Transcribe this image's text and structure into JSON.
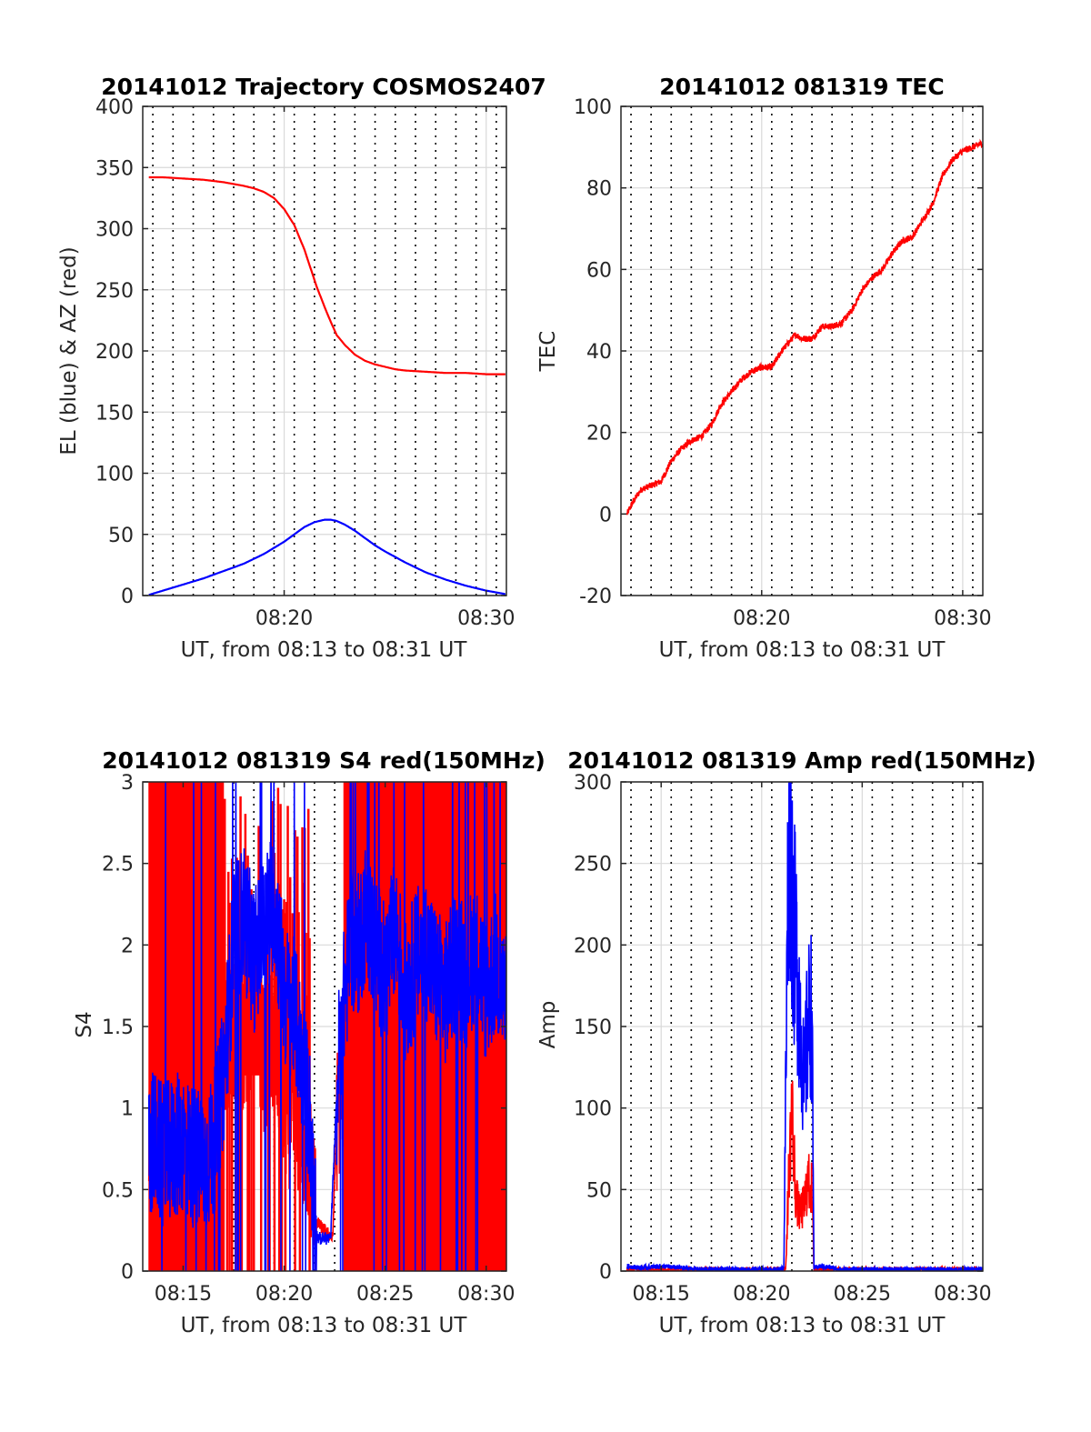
{
  "colors": {
    "azimuth": "#ff0000",
    "elevation": "#0000ff",
    "tec": "#ff0000",
    "s4_red": "#ff0000",
    "s4_blue": "#0000ff",
    "amp_red": "#ff0000",
    "amp_blue": "#0000ff",
    "grid": "#d9d9d9",
    "axes": "#262626"
  },
  "chart_data": [
    {
      "id": "trajectory",
      "type": "line",
      "title": "20141012 Trajectory COSMOS2407",
      "xlabel": "UT, from 08:13 to 08:31 UT",
      "ylabel": "EL (blue) & AZ (red)",
      "xlim_min": [
        13.0,
        31.0
      ],
      "ylim": [
        0,
        400
      ],
      "xticks": [
        20,
        30
      ],
      "xtick_labels": [
        "08:20",
        "08:30"
      ],
      "yticks": [
        0,
        50,
        100,
        150,
        200,
        250,
        300,
        350,
        400
      ],
      "ytick_labels": [
        "0",
        "50",
        "100",
        "150",
        "200",
        "250",
        "300",
        "350",
        "400"
      ],
      "minor_x": [
        13.5,
        14.5,
        15.5,
        16.5,
        17.5,
        18.5,
        19.5,
        20.5,
        21.5,
        22.5,
        23.5,
        24.5,
        25.5,
        26.5,
        27.5,
        28.5,
        29.5,
        30.5
      ],
      "grid": true,
      "series": [
        {
          "color": "#ff0000",
          "x": [
            13.3,
            14,
            15,
            16,
            17,
            18,
            18.5,
            19,
            19.5,
            20,
            20.5,
            21,
            21.3,
            21.6,
            22,
            22.3,
            22.6,
            23,
            23.5,
            24,
            24.5,
            25,
            25.5,
            26,
            27,
            28,
            29,
            30,
            31
          ],
          "y": [
            342,
            342,
            341,
            340,
            338,
            335,
            333,
            330,
            325,
            316,
            303,
            283,
            268,
            253,
            236,
            224,
            213,
            205,
            197,
            192,
            189,
            187,
            185,
            184,
            183,
            182,
            182,
            181,
            181
          ]
        },
        {
          "color": "#0000ff",
          "x": [
            13.3,
            14,
            15,
            16,
            17,
            18,
            19,
            20,
            20.5,
            21,
            21.5,
            22,
            22.3,
            22.6,
            23,
            23.5,
            24,
            24.5,
            25,
            26,
            27,
            28,
            29,
            30,
            31
          ],
          "y": [
            0.5,
            4,
            9,
            14,
            20,
            26,
            34,
            44,
            50,
            56,
            60,
            62,
            62,
            61,
            58,
            53,
            47,
            41,
            36,
            27,
            19,
            13,
            8,
            4,
            1
          ]
        }
      ]
    },
    {
      "id": "tec",
      "type": "line",
      "title": "20141012 081319 TEC",
      "xlabel": "UT, from 08:13 to 08:31 UT",
      "ylabel": "TEC",
      "xlim_min": [
        13.0,
        31.0
      ],
      "ylim": [
        -20,
        100
      ],
      "xticks": [
        20,
        30
      ],
      "xtick_labels": [
        "08:20",
        "08:30"
      ],
      "yticks": [
        -20,
        0,
        20,
        40,
        60,
        80,
        100
      ],
      "ytick_labels": [
        "-20",
        "0",
        "20",
        "40",
        "60",
        "80",
        "100"
      ],
      "minor_x": [
        13.5,
        14.5,
        15.5,
        16.5,
        17.5,
        18.5,
        19.5,
        20.5,
        21.5,
        22.5,
        23.5,
        24.5,
        25.5,
        26.5,
        27.5,
        28.5,
        29.5,
        30.5
      ],
      "grid": true,
      "series": [
        {
          "color": "#ff0000",
          "x": [
            13.3,
            13.6,
            14,
            14.5,
            15,
            15.5,
            16,
            16.5,
            17,
            17.5,
            18,
            18.5,
            19,
            19.5,
            20,
            20.5,
            21,
            21.5,
            21.7,
            22,
            22.5,
            23,
            23.5,
            24,
            24.5,
            25,
            25.5,
            26,
            26.5,
            27,
            27.5,
            28,
            28.5,
            29,
            29.5,
            30,
            30.5,
            31
          ],
          "y": [
            0,
            3,
            6,
            7,
            8,
            13,
            16,
            18,
            19,
            22,
            27,
            30,
            33,
            35,
            36,
            36,
            40,
            43,
            44,
            43,
            43,
            46,
            46,
            47,
            50,
            55,
            58,
            60,
            64,
            67,
            68,
            72,
            76,
            83,
            87,
            89,
            90,
            91
          ]
        }
      ]
    },
    {
      "id": "s4",
      "type": "line",
      "title": "20141012 081319 S4 red(150MHz)",
      "xlabel": "UT, from 08:13 to 08:31 UT",
      "ylabel": "S4",
      "xlim_min": [
        13.0,
        31.0
      ],
      "ylim": [
        0,
        3
      ],
      "xticks": [
        15,
        20,
        25,
        30
      ],
      "xtick_labels": [
        "08:15",
        "08:20",
        "08:25",
        "08:30"
      ],
      "yticks": [
        0,
        0.5,
        1,
        1.5,
        2,
        2.5,
        3
      ],
      "ytick_labels": [
        "0",
        "0.5",
        "1",
        "1.5",
        "2",
        "2.5",
        "3"
      ],
      "minor_x": [
        13.5,
        14.5,
        15.5,
        16.5,
        17.5,
        18.5,
        19.5,
        20.5,
        21.5,
        22.5,
        23.5,
        24.5,
        25.5,
        26.5,
        27.5,
        28.5,
        29.5,
        30.5
      ],
      "grid": true,
      "series": [
        {
          "color": "#ff0000",
          "x": [
            13.3,
            16.9,
            17.0,
            17.5,
            18,
            18.5,
            19,
            19.5,
            20,
            20.5,
            21,
            21.4,
            21.6,
            22,
            22.4,
            22.6,
            22.9,
            23.1,
            23.5,
            24,
            24.5,
            25,
            25.5,
            26,
            26.5,
            27,
            27.5,
            28,
            28.5,
            29,
            29.5,
            30,
            30.5,
            31
          ],
          "y": [
            0.75,
            0.7,
            1.3,
            1.5,
            1.4,
            1.6,
            1.3,
            1.4,
            1.0,
            0.9,
            0.8,
            0.6,
            0.3,
            0.25,
            0.2,
            0.9,
            1.2,
            1.0,
            1.3,
            1.5,
            1.4,
            1.6,
            1.5,
            1.4,
            1.5,
            1.6,
            1.5,
            1.4,
            1.5,
            1.4,
            1.6,
            1.3,
            1.5,
            1.4
          ]
        },
        {
          "color": "#0000ff",
          "x": [
            13.3,
            13.5,
            14,
            14.5,
            15,
            15.5,
            16,
            16.5,
            17,
            17.5,
            18,
            18.5,
            19,
            19.5,
            20,
            20.5,
            21,
            21.3,
            21.5,
            21.7,
            22,
            22.3,
            22.5,
            22.7,
            22.9,
            23.1,
            23.3,
            23.5,
            24,
            24.5,
            25,
            25.5,
            26,
            26.5,
            27,
            27.5,
            28,
            28.5,
            29,
            29.5,
            30,
            30.5,
            31
          ],
          "y": [
            0.75,
            0.8,
            0.7,
            0.75,
            0.8,
            0.7,
            0.65,
            0.75,
            1.2,
            2.0,
            2.2,
            1.9,
            2.1,
            2.3,
            1.7,
            1.6,
            1.2,
            0.9,
            0.25,
            0.2,
            0.2,
            0.2,
            0.8,
            1.3,
            1.6,
            1.8,
            2.1,
            1.9,
            2.2,
            2.0,
            1.8,
            2.1,
            1.7,
            1.9,
            2.0,
            1.8,
            1.7,
            1.9,
            1.8,
            2.0,
            1.7,
            1.9,
            1.6
          ]
        }
      ]
    },
    {
      "id": "amp",
      "type": "line",
      "title": "20141012 081319 Amp red(150MHz)",
      "xlabel": "UT, from 08:13 to 08:31 UT",
      "ylabel": "Amp",
      "xlim_min": [
        13.0,
        31.0
      ],
      "ylim": [
        0,
        300
      ],
      "xticks": [
        15,
        20,
        25,
        30
      ],
      "xtick_labels": [
        "08:15",
        "08:20",
        "08:25",
        "08:30"
      ],
      "yticks": [
        0,
        50,
        100,
        150,
        200,
        250,
        300
      ],
      "ytick_labels": [
        "0",
        "50",
        "100",
        "150",
        "200",
        "250",
        "300"
      ],
      "minor_x": [
        13.5,
        14.5,
        15.5,
        16.5,
        17.5,
        18.5,
        19.5,
        20.5,
        21.5,
        22.5,
        23.5,
        24.5,
        25.5,
        26.5,
        27.5,
        28.5,
        29.5,
        30.5
      ],
      "grid": true,
      "series": [
        {
          "color": "#ff0000",
          "x": [
            13.3,
            15,
            17,
            19,
            21.0,
            21.2,
            21.35,
            21.5,
            21.7,
            21.9,
            22.1,
            22.3,
            22.5,
            22.6,
            24,
            26,
            28,
            30,
            31
          ],
          "y": [
            1,
            1,
            1,
            1,
            1,
            2,
            60,
            100,
            45,
            35,
            40,
            55,
            50,
            1,
            1,
            1,
            1,
            1,
            1
          ]
        },
        {
          "color": "#0000ff",
          "x": [
            13.3,
            14,
            15,
            16,
            17,
            18,
            19,
            20,
            20.8,
            21.1,
            21.3,
            21.4,
            21.5,
            21.6,
            21.8,
            22.0,
            22.1,
            22.3,
            22.5,
            22.6,
            23,
            24,
            25,
            26,
            27,
            28,
            29,
            30,
            31
          ],
          "y": [
            3,
            2,
            3,
            2,
            1,
            1,
            1,
            1,
            1,
            2,
            230,
            285,
            240,
            210,
            180,
            140,
            110,
            150,
            160,
            2,
            3,
            1,
            1,
            1,
            1,
            1,
            1,
            1,
            1
          ]
        }
      ]
    }
  ]
}
